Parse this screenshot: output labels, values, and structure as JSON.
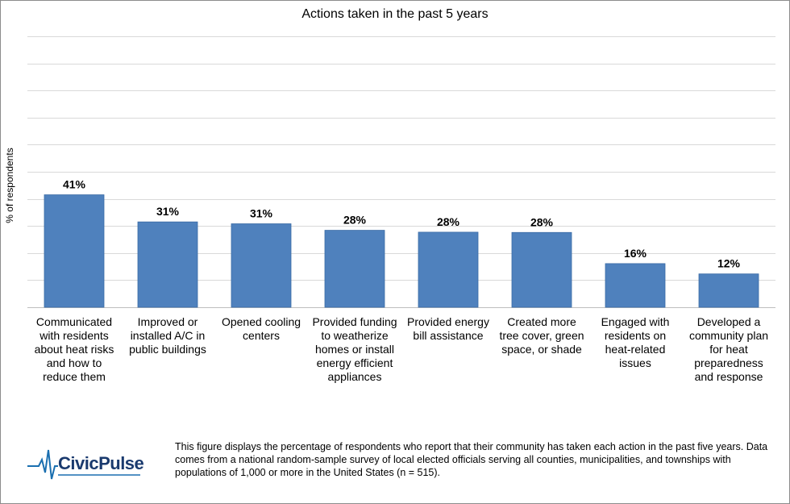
{
  "chart_data": {
    "type": "bar",
    "title": "Actions taken in the past 5 years",
    "ylabel": "% of respondents",
    "xlabel": "",
    "ylim": [
      0,
      100
    ],
    "grid": true,
    "bar_color": "#4f81bd",
    "categories": [
      "Communicated with residents about heat risks and how to reduce them",
      "Improved or installed A/C in public buildings",
      "Opened cooling centers",
      "Provided funding to weatherize homes or install energy efficient appliances",
      "Provided energy bill assistance",
      "Created more tree cover, green space, or shade",
      "Engaged with residents on heat-related issues",
      "Developed a community plan for heat preparedness and response"
    ],
    "values": [
      41.5,
      31.5,
      30.8,
      28.4,
      27.7,
      27.6,
      16.1,
      12.3
    ],
    "data_labels": [
      "41%",
      "31%",
      "31%",
      "28%",
      "28%",
      "28%",
      "16%",
      "12%"
    ]
  },
  "footer": {
    "logo_text": "CivicPulse",
    "logo_color": "#1a3a6e",
    "note": "This figure displays the percentage of respondents who report that their community has taken each action in the past five years. Data comes from a national random-sample survey of local elected officials serving all counties, municipalities, and townships with populations of 1,000 or more in the United States (n = 515)."
  }
}
